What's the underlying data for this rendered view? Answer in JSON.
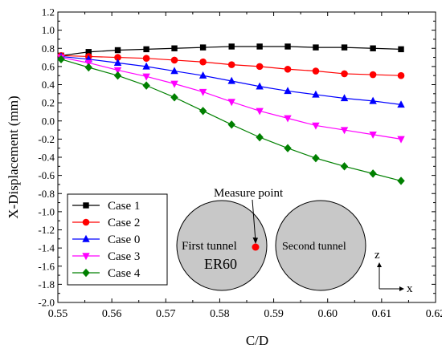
{
  "chart_data": {
    "type": "line",
    "xlabel": "C/D",
    "ylabel": "X-Displacement (mm)",
    "xlim": [
      0.55,
      0.62
    ],
    "ylim": [
      -2.0,
      1.2
    ],
    "xticks": [
      "0.55",
      "0.56",
      "0.57",
      "0.58",
      "0.59",
      "0.60",
      "0.61",
      "0.62"
    ],
    "yticks": [
      "-2.0",
      "-1.8",
      "-1.6",
      "-1.4",
      "-1.2",
      "-1.0",
      "-0.8",
      "-0.6",
      "-0.4",
      "-0.2",
      "0.0",
      "0.2",
      "0.4",
      "0.6",
      "0.8",
      "1.0",
      "1.2"
    ],
    "grid": false,
    "legend_position": "lower-left",
    "x": [
      0.5506,
      0.5557,
      0.5611,
      0.5664,
      0.5716,
      0.5769,
      0.5822,
      0.5874,
      0.5926,
      0.5978,
      0.6031,
      0.6084,
      0.6136
    ],
    "series": [
      {
        "name": "Case 1",
        "color": "#000000",
        "marker": "square",
        "values": [
          0.72,
          0.76,
          0.78,
          0.79,
          0.8,
          0.81,
          0.82,
          0.82,
          0.82,
          0.81,
          0.81,
          0.8,
          0.79
        ]
      },
      {
        "name": "Case 2",
        "color": "#ff0000",
        "marker": "circle",
        "values": [
          0.72,
          0.71,
          0.7,
          0.69,
          0.67,
          0.65,
          0.62,
          0.6,
          0.57,
          0.55,
          0.52,
          0.51,
          0.5
        ]
      },
      {
        "name": "Case 0",
        "color": "#0000ff",
        "marker": "triangle-up",
        "values": [
          0.71,
          0.68,
          0.64,
          0.6,
          0.55,
          0.5,
          0.44,
          0.38,
          0.33,
          0.29,
          0.25,
          0.22,
          0.18
        ]
      },
      {
        "name": "Case 3",
        "color": "#ff00ff",
        "marker": "triangle-down",
        "values": [
          0.7,
          0.64,
          0.56,
          0.49,
          0.41,
          0.32,
          0.21,
          0.11,
          0.03,
          -0.05,
          -0.1,
          -0.15,
          -0.2
        ]
      },
      {
        "name": "Case 4",
        "color": "#008000",
        "marker": "diamond",
        "values": [
          0.68,
          0.59,
          0.5,
          0.39,
          0.26,
          0.11,
          -0.04,
          -0.18,
          -0.3,
          -0.41,
          -0.5,
          -0.58,
          -0.66
        ]
      }
    ],
    "inset": {
      "measure_point_label": "Measure point",
      "first_tunnel_label": "First tunnel",
      "second_tunnel_label": "Second tunnel",
      "case_label": "ER60",
      "case_label_color": "#ff0000",
      "tunnel_fill": "#c8c8c8",
      "measure_point_color": "#ff0000",
      "axis_z_label": "z",
      "axis_x_label": "x"
    }
  }
}
